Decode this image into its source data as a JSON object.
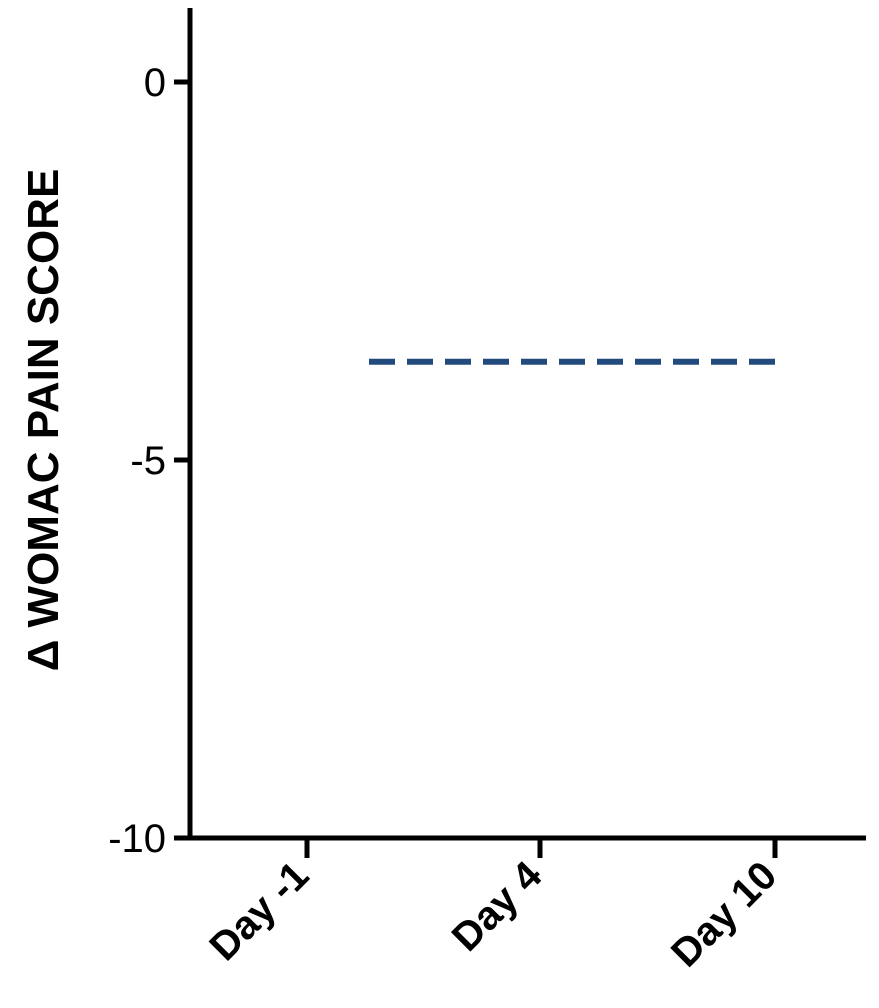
{
  "chart_data": {
    "type": "line",
    "title": "",
    "xlabel": "",
    "ylabel": "Δ WOMAC PAIN SCORE",
    "categories": [
      "Day -1",
      "Day 4",
      "Day 10"
    ],
    "ylim": [
      -10,
      1
    ],
    "yticks": [
      0,
      -5,
      -10
    ],
    "ytick_labels": [
      "0",
      "-5",
      "-10"
    ],
    "grid": false,
    "reference_line": {
      "style": "dashed",
      "color": "#234a7c",
      "y": -3.7,
      "x_start": "Day -1",
      "x_end": "Day 10"
    }
  }
}
